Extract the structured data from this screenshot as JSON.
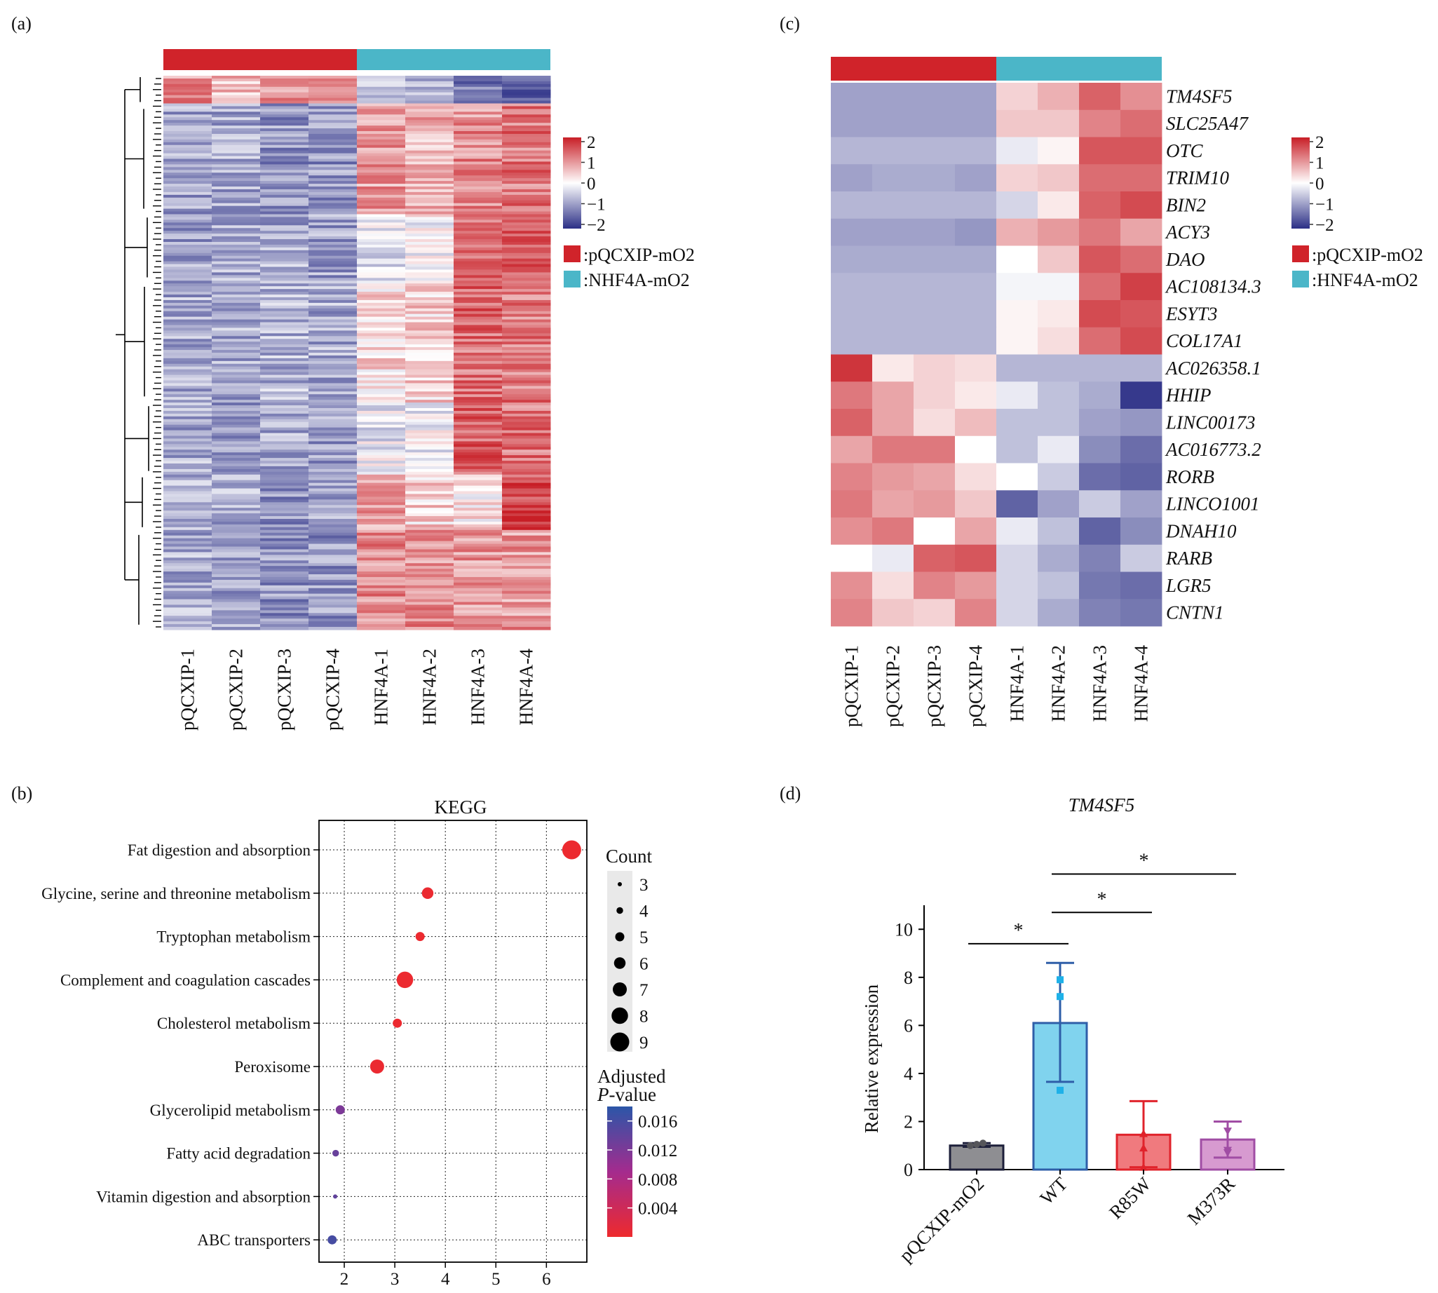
{
  "panels": {
    "a": {
      "label": "(a)",
      "samples": [
        "pQCXIP-1",
        "pQCXIP-2",
        "pQCXIP-3",
        "pQCXIP-4",
        "HNF4A-1",
        "HNF4A-2",
        "HNF4A-3",
        "HNF4A-4"
      ],
      "legend": {
        "scale_ticks": [
          "2",
          "1",
          "0",
          "−1",
          "−2"
        ],
        "groups": [
          {
            "label": ":pQCXIP-mO2",
            "color": "#d0232a"
          },
          {
            "label": ":NHF4A-mO2",
            "color": "#4bb6c8"
          }
        ]
      }
    },
    "b": {
      "label": "(b)",
      "title": "KEGG",
      "size_legend_title": "Count",
      "color_legend_title_1": "Adjusted",
      "color_legend_title_2": "P",
      "color_legend_title_3": "-value"
    },
    "c": {
      "label": "(c)",
      "samples": [
        "pQCXIP-1",
        "pQCXIP-2",
        "pQCXIP-3",
        "pQCXIP-4",
        "HNF4A-1",
        "HNF4A-2",
        "HNF4A-3",
        "HNF4A-4"
      ],
      "legend": {
        "scale_ticks": [
          "2",
          "1",
          "0",
          "−1",
          "−2"
        ],
        "groups": [
          {
            "label": ":pQCXIP-mO2",
            "color": "#d0232a"
          },
          {
            "label": ":HNF4A-mO2",
            "color": "#4bb6c8"
          }
        ]
      }
    },
    "d": {
      "label": "(d)",
      "title": "TM4SF5",
      "ylabel": "Relative expression"
    }
  },
  "chart_data": [
    {
      "panel": "a",
      "type": "heatmap",
      "columns": [
        "pQCXIP-1",
        "pQCXIP-2",
        "pQCXIP-3",
        "pQCXIP-4",
        "HNF4A-1",
        "HNF4A-2",
        "HNF4A-3",
        "HNF4A-4"
      ],
      "column_groups": [
        "pQCXIP-mO2",
        "pQCXIP-mO2",
        "pQCXIP-mO2",
        "pQCXIP-mO2",
        "NHF4A-mO2",
        "NHF4A-mO2",
        "NHF4A-mO2",
        "NHF4A-mO2"
      ],
      "color_scale": {
        "min": -2,
        "max": 2,
        "low": "#2b2f86",
        "mid": "#ffffff",
        "high": "#c81e26"
      },
      "row_clusters": [
        {
          "rows": 10,
          "values": [
            1.0,
            0.6,
            1.0,
            1.1,
            -0.7,
            -0.8,
            -1.3,
            -1.5
          ]
        },
        {
          "rows": 40,
          "values": [
            -0.9,
            -0.8,
            -1.0,
            -1.0,
            0.9,
            0.7,
            1.0,
            1.2
          ]
        },
        {
          "rows": 24,
          "values": [
            -0.9,
            -0.8,
            -0.8,
            -0.9,
            -0.3,
            0.0,
            1.2,
            1.4
          ]
        },
        {
          "rows": 44,
          "values": [
            -0.8,
            -0.8,
            -0.7,
            -0.8,
            0.3,
            0.4,
            1.3,
            1.2
          ]
        },
        {
          "rows": 26,
          "values": [
            -0.8,
            -0.9,
            -0.8,
            -0.9,
            -0.2,
            -0.1,
            1.4,
            1.2
          ]
        },
        {
          "rows": 20,
          "values": [
            -0.8,
            -0.8,
            -1.0,
            -0.9,
            0.9,
            0.4,
            0.2,
            1.6
          ]
        },
        {
          "rows": 36,
          "values": [
            -0.8,
            -0.9,
            -1.0,
            -1.0,
            1.0,
            1.0,
            0.9,
            0.9
          ]
        }
      ]
    },
    {
      "panel": "b",
      "type": "scatter",
      "title": "KEGG",
      "x_ticks": [
        2,
        3,
        4,
        5,
        6
      ],
      "xlim": [
        1.5,
        6.8
      ],
      "categories": [
        "Fat digestion and absorption",
        "Glycine, serine and threonine metabolism",
        "Tryptophan metabolism",
        "Complement and coagulation cascades",
        "Cholesterol metabolism",
        "Peroxisome",
        "Glycerolipid metabolism",
        "Fatty acid degradation",
        "Vitamin digestion and absorption",
        "ABC transporters"
      ],
      "x": [
        6.5,
        3.65,
        3.5,
        3.2,
        3.05,
        2.65,
        1.92,
        1.83,
        1.82,
        1.76
      ],
      "count": [
        9,
        6,
        5,
        8,
        5,
        7,
        5,
        4,
        3,
        5
      ],
      "padj": [
        0.0002,
        0.0004,
        0.0003,
        0.0003,
        0.0003,
        0.0004,
        0.012,
        0.0135,
        0.014,
        0.016
      ],
      "size_legend": {
        "title": "Count",
        "values": [
          3,
          4,
          5,
          6,
          7,
          8,
          9
        ]
      },
      "color_legend": {
        "title": "Adjusted P-value",
        "ticks": [
          0.016,
          0.012,
          0.008,
          0.004
        ],
        "range": [
          0.0,
          0.018
        ],
        "low": "#ee2a2d",
        "mid": "#a42b8e",
        "high": "#2b56a8"
      },
      "grid": true
    },
    {
      "panel": "c",
      "type": "heatmap",
      "columns": [
        "pQCXIP-1",
        "pQCXIP-2",
        "pQCXIP-3",
        "pQCXIP-4",
        "HNF4A-1",
        "HNF4A-2",
        "HNF4A-3",
        "HNF4A-4"
      ],
      "column_groups": [
        "pQCXIP-mO2",
        "pQCXIP-mO2",
        "pQCXIP-mO2",
        "pQCXIP-mO2",
        "HNF4A-mO2",
        "HNF4A-mO2",
        "HNF4A-mO2",
        "HNF4A-mO2"
      ],
      "color_scale": {
        "min": -2,
        "max": 2,
        "low": "#2b2f86",
        "mid": "#ffffff",
        "high": "#c81e26"
      },
      "rows": [
        "TM4SF5",
        "SLC25A47",
        "OTC",
        "TRIM10",
        "BIN2",
        "ACY3",
        "DAO",
        "AC108134.3",
        "ESYT3",
        "COL17A1",
        "AC026358.1",
        "HHIP",
        "LINC00173",
        "AC016773.2",
        "RORB",
        "LINCO1001",
        "DNAH10",
        "RARB",
        "LGR5",
        "CNTN1"
      ],
      "values": [
        [
          -0.9,
          -0.9,
          -0.9,
          -0.9,
          0.4,
          0.7,
          1.4,
          1.0
        ],
        [
          -0.9,
          -0.9,
          -0.9,
          -0.9,
          0.5,
          0.5,
          1.1,
          1.3
        ],
        [
          -0.7,
          -0.7,
          -0.7,
          -0.7,
          -0.2,
          0.1,
          1.5,
          1.5
        ],
        [
          -0.9,
          -0.8,
          -0.8,
          -0.9,
          0.4,
          0.5,
          1.3,
          1.3
        ],
        [
          -0.7,
          -0.7,
          -0.7,
          -0.7,
          -0.4,
          0.2,
          1.4,
          1.6
        ],
        [
          -0.9,
          -0.9,
          -0.9,
          -1.0,
          0.7,
          0.9,
          1.2,
          0.8
        ],
        [
          -0.8,
          -0.8,
          -0.8,
          -0.8,
          0.0,
          0.5,
          1.5,
          1.3
        ],
        [
          -0.7,
          -0.7,
          -0.7,
          -0.7,
          -0.1,
          -0.1,
          1.3,
          1.7
        ],
        [
          -0.7,
          -0.7,
          -0.7,
          -0.7,
          0.1,
          0.2,
          1.6,
          1.5
        ],
        [
          -0.7,
          -0.7,
          -0.7,
          -0.7,
          0.1,
          0.3,
          1.3,
          1.6
        ],
        [
          1.8,
          0.2,
          0.4,
          0.3,
          -0.7,
          -0.7,
          -0.7,
          -0.7
        ],
        [
          1.2,
          0.8,
          0.4,
          0.2,
          -0.2,
          -0.6,
          -0.8,
          -1.9
        ],
        [
          1.4,
          0.8,
          0.3,
          0.6,
          -0.6,
          -0.6,
          -0.9,
          -1.0
        ],
        [
          0.8,
          1.2,
          1.2,
          0.0,
          -0.6,
          -0.2,
          -1.1,
          -1.4
        ],
        [
          1.1,
          0.9,
          0.8,
          0.3,
          0.0,
          -0.5,
          -1.4,
          -1.5
        ],
        [
          1.2,
          0.8,
          0.9,
          0.5,
          -1.5,
          -0.9,
          -0.5,
          -0.9
        ],
        [
          1.0,
          1.2,
          0.0,
          0.8,
          -0.2,
          -0.6,
          -1.5,
          -1.1
        ],
        [
          0.0,
          -0.2,
          1.4,
          1.5,
          -0.4,
          -0.8,
          -1.2,
          -0.5
        ],
        [
          1.0,
          0.3,
          1.1,
          0.9,
          -0.4,
          -0.6,
          -1.3,
          -1.4
        ],
        [
          1.1,
          0.5,
          0.4,
          1.1,
          -0.4,
          -0.8,
          -1.2,
          -1.3
        ]
      ]
    },
    {
      "panel": "d",
      "type": "bar",
      "title": "TM4SF5",
      "ylabel": "Relative expression",
      "categories": [
        "pQCXIP-mO2",
        "WT",
        "R85W",
        "M373R"
      ],
      "values": [
        1.0,
        6.1,
        1.45,
        1.25
      ],
      "error_upper": [
        1.1,
        8.6,
        2.85,
        2.0
      ],
      "error_lower": [
        0.95,
        3.65,
        0.1,
        0.5
      ],
      "points": [
        [
          1.0,
          1.05,
          1.1
        ],
        [
          7.9,
          7.2,
          3.3
        ],
        [
          0.1,
          0.9,
          1.5
        ],
        [
          1.6,
          0.8,
          0.7
        ]
      ],
      "fill_colors": [
        "#8e8e92",
        "#80d3ee",
        "#f07a7e",
        "#d79ad0"
      ],
      "edge_colors": [
        "#1d1f3a",
        "#2e5ea8",
        "#e0232b",
        "#a04da4"
      ],
      "point_colors": [
        "#55555a",
        "#1eb1e8",
        "#e0232b",
        "#a04da4"
      ],
      "y_ticks": [
        0,
        2,
        4,
        6,
        8,
        10
      ],
      "ylim": [
        0,
        11
      ],
      "significance": [
        {
          "from": 0,
          "to": 1,
          "label": "*",
          "y": 9.4
        },
        {
          "from": 1,
          "to": 2,
          "label": "*",
          "y": 10.7
        },
        {
          "from": 1,
          "to": 3,
          "label": "*",
          "y": 12.3
        }
      ]
    }
  ]
}
